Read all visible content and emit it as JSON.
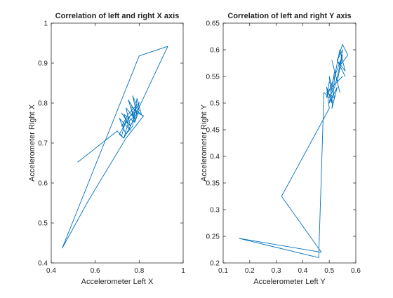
{
  "chart_data": [
    {
      "type": "line",
      "title": "Correlation of left and right X axis",
      "xlabel": "Accelerometer Left X",
      "ylabel": "Accelerometer Right X",
      "xlim": [
        0.4,
        1.0
      ],
      "ylim": [
        0.4,
        1.0
      ],
      "xticks": [
        0.4,
        0.6,
        0.8,
        1.0
      ],
      "xtick_labels": [
        "0.4",
        "0.6",
        "0.8",
        "1"
      ],
      "yticks": [
        0.4,
        0.5,
        0.6,
        0.7,
        0.8,
        0.9,
        1.0
      ],
      "ytick_labels": [
        "0.4",
        "0.5",
        "0.6",
        "0.7",
        "0.8",
        "0.9",
        "1"
      ],
      "grid": false,
      "line_color": "#0072bd",
      "series": [
        {
          "x": [
            0.52,
            0.7,
            0.73,
            0.75,
            0.72,
            0.76,
            0.74,
            0.78,
            0.75,
            0.79,
            0.77,
            0.8,
            0.78,
            0.76,
            0.81,
            0.79,
            0.77,
            0.74,
            0.71,
            0.76,
            0.73,
            0.78,
            0.8,
            0.75,
            0.72,
            0.77,
            0.79,
            0.74,
            0.71,
            0.73,
            0.76,
            0.81,
            0.93,
            0.8,
            0.45,
            0.57,
            0.74,
            0.82,
            0.78,
            0.74,
            0.72
          ],
          "y": [
            0.652,
            0.73,
            0.712,
            0.75,
            0.775,
            0.742,
            0.788,
            0.76,
            0.808,
            0.772,
            0.818,
            0.782,
            0.752,
            0.792,
            0.772,
            0.812,
            0.742,
            0.722,
            0.762,
            0.732,
            0.772,
            0.752,
            0.802,
            0.772,
            0.742,
            0.762,
            0.792,
            0.752,
            0.722,
            0.712,
            0.742,
            0.802,
            0.942,
            0.918,
            0.437,
            0.557,
            0.712,
            0.768,
            0.778,
            0.758,
            0.718
          ]
        }
      ]
    },
    {
      "type": "line",
      "title": "Correlation of left and right Y axis",
      "xlabel": "Accelerometer Left Y",
      "ylabel": "Accelerometer Right Y",
      "xlim": [
        0.1,
        0.6
      ],
      "ylim": [
        0.2,
        0.65
      ],
      "xticks": [
        0.1,
        0.2,
        0.3,
        0.4,
        0.5,
        0.6
      ],
      "xtick_labels": [
        "0.1",
        "0.2",
        "0.3",
        "0.4",
        "0.5",
        "0.6"
      ],
      "yticks": [
        0.2,
        0.25,
        0.3,
        0.35,
        0.4,
        0.45,
        0.5,
        0.55,
        0.6,
        0.65
      ],
      "ytick_labels": [
        "0.2",
        "0.25",
        "0.3",
        "0.35",
        "0.4",
        "0.45",
        "0.5",
        "0.55",
        "0.6",
        "0.65"
      ],
      "grid": false,
      "line_color": "#0072bd",
      "series": [
        {
          "x": [
            0.5,
            0.49,
            0.52,
            0.51,
            0.53,
            0.5,
            0.52,
            0.54,
            0.51,
            0.53,
            0.55,
            0.52,
            0.54,
            0.56,
            0.53,
            0.55,
            0.57,
            0.54,
            0.55,
            0.53,
            0.56,
            0.54,
            0.52,
            0.5,
            0.48,
            0.46,
            0.16,
            0.47,
            0.32,
            0.5,
            0.49,
            0.51,
            0.5,
            0.52,
            0.49,
            0.55,
            0.51
          ],
          "y": [
            0.54,
            0.51,
            0.55,
            0.49,
            0.53,
            0.5,
            0.56,
            0.52,
            0.58,
            0.54,
            0.59,
            0.55,
            0.6,
            0.56,
            0.58,
            0.61,
            0.59,
            0.57,
            0.6,
            0.58,
            0.55,
            0.57,
            0.53,
            0.51,
            0.52,
            0.21,
            0.246,
            0.22,
            0.325,
            0.49,
            0.53,
            0.5,
            0.55,
            0.51,
            0.52,
            0.55,
            0.53
          ]
        }
      ]
    }
  ]
}
